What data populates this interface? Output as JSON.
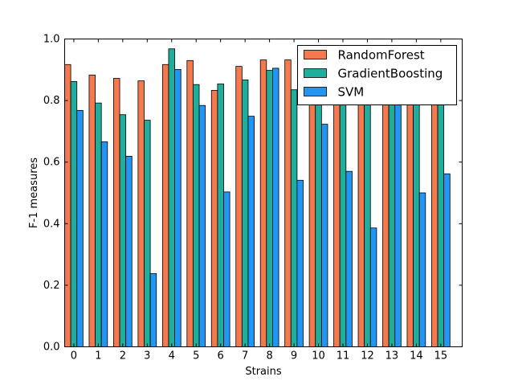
{
  "chart_data": {
    "type": "bar",
    "xlabel": "Strains",
    "ylabel": "F-1 measures",
    "ylim": [
      0,
      1.0
    ],
    "yticks": [
      "0.0",
      "0.2",
      "0.4",
      "0.6",
      "0.8",
      "1.0"
    ],
    "categories": [
      "0",
      "1",
      "2",
      "3",
      "4",
      "5",
      "6",
      "7",
      "8",
      "9",
      "10",
      "11",
      "12",
      "13",
      "14",
      "15"
    ],
    "legend_position": "top-right",
    "grid": false,
    "series": [
      {
        "name": "RandomForest",
        "color": "#f4794f",
        "values": [
          0.917,
          0.883,
          0.872,
          0.864,
          0.917,
          0.93,
          0.833,
          0.911,
          0.932,
          0.932,
          0.89,
          0.89,
          0.89,
          0.89,
          0.89,
          0.89
        ]
      },
      {
        "name": "GradientBoosting",
        "color": "#1fae9b",
        "values": [
          0.862,
          0.792,
          0.754,
          0.736,
          0.968,
          0.852,
          0.854,
          0.867,
          0.898,
          0.835,
          0.85,
          0.84,
          0.83,
          0.85,
          0.83,
          0.85
        ]
      },
      {
        "name": "SVM",
        "color": "#2196f5",
        "values": [
          0.768,
          0.666,
          0.619,
          0.238,
          0.901,
          0.784,
          0.503,
          0.749,
          0.905,
          0.541,
          0.723,
          0.57,
          0.386,
          0.82,
          0.5,
          0.562
        ]
      }
    ]
  }
}
